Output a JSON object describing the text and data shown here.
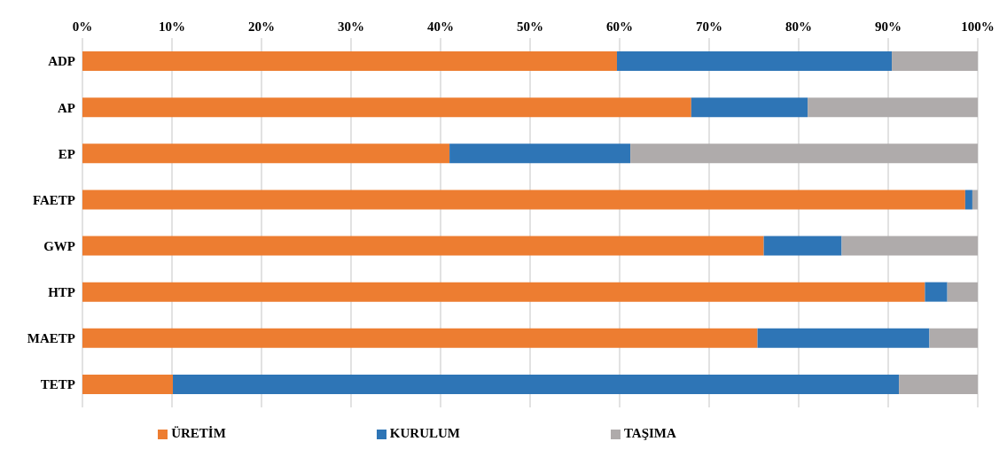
{
  "chart_data": {
    "type": "bar",
    "orientation": "horizontal",
    "stacked": true,
    "categories": [
      "ADP",
      "AP",
      "EP",
      "FAETP",
      "GWP",
      "HTP",
      "MAETP",
      "TETP"
    ],
    "series": [
      {
        "name": "ÜRETİM",
        "color": "#ed7d31",
        "values": [
          59.7,
          68.0,
          41.0,
          98.6,
          76.1,
          94.1,
          75.4,
          10.1
        ]
      },
      {
        "name": "KURULUM",
        "color": "#2e75b6",
        "values": [
          30.7,
          13.0,
          20.2,
          0.8,
          8.7,
          2.5,
          19.2,
          81.1
        ]
      },
      {
        "name": "TAŞIMA",
        "color": "#afabab",
        "values": [
          9.6,
          19.0,
          38.8,
          0.6,
          15.2,
          3.4,
          5.4,
          8.8
        ]
      }
    ],
    "xlim": [
      0,
      100
    ],
    "xticks": [
      {
        "value": 0,
        "label": "0%"
      },
      {
        "value": 10,
        "label": "10%"
      },
      {
        "value": 20,
        "label": "20%"
      },
      {
        "value": 30,
        "label": "30%"
      },
      {
        "value": 40,
        "label": "40%"
      },
      {
        "value": 50,
        "label": "50%"
      },
      {
        "value": 60,
        "label": "60%"
      },
      {
        "value": 70,
        "label": "70%"
      },
      {
        "value": 80,
        "label": "80%"
      },
      {
        "value": 90,
        "label": "90%"
      },
      {
        "value": 100,
        "label": "100%"
      }
    ],
    "grid": "x",
    "legend": "bottom"
  }
}
